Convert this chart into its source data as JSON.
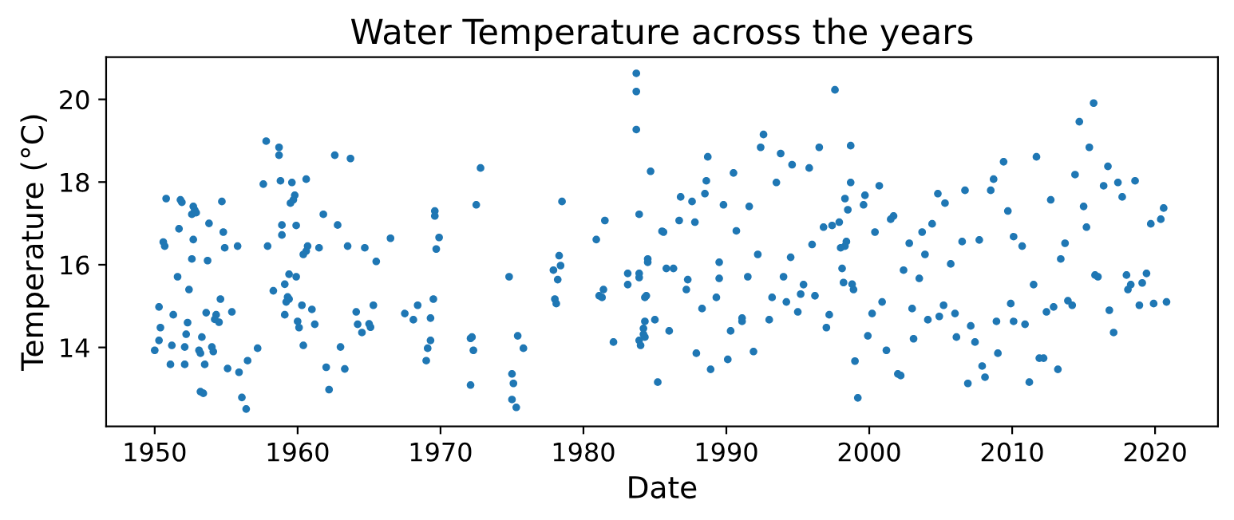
{
  "chart_data": {
    "type": "scatter",
    "title": "Water Temperature across the years",
    "xlabel": "Date",
    "ylabel": "Temperature (°C)",
    "color": "#1f77b4",
    "marker": "circle",
    "grid": false,
    "xlim": [
      1946.6,
      2024.4
    ],
    "ylim": [
      12.09,
      21.02
    ],
    "xticks": [
      1950,
      1960,
      1970,
      1980,
      1990,
      2000,
      2010,
      2020
    ],
    "yticks": [
      14,
      16,
      18,
      20
    ],
    "x": [
      1950.8,
      1951.8,
      1951.9,
      1952.7,
      1952.8,
      1952.6,
      1952.9,
      1954.7,
      1953.8,
      1951.7,
      1954.8,
      1950.6,
      1950.7,
      1952.7,
      1954.9,
      1955.8,
      1952.6,
      1953.7,
      1951.6,
      1952.4,
      1954.6,
      1950.3,
      1951.3,
      1953.6,
      1954.3,
      1954.2,
      1954.5,
      1955.4,
      1950.4,
      1952.3,
      1952.2,
      1953.3,
      1950.3,
      1951.2,
      1952.1,
      1953.1,
      1953.2,
      1954.0,
      1954.1,
      1950.0,
      1951.1,
      1952.1,
      1953.5,
      1955.1,
      1955.9,
      1956.5,
      1957.2,
      1953.2,
      1953.4,
      1956.1,
      1956.4,
      1957.8,
      1958.7,
      1958.7,
      1957.6,
      1958.8,
      1959.6,
      1960.6,
      1959.8,
      1959.7,
      1959.5,
      1958.9,
      1958.9,
      1959.9,
      1957.9,
      1960.7,
      1960.6,
      1960.4,
      1961.5,
      1961.8,
      1962.8,
      1962.6,
      1963.7,
      1963.5,
      1964.7,
      1965.5,
      1959.4,
      1959.9,
      1959.1,
      1958.3,
      1959.3,
      1959.4,
      1959.2,
      1959.1,
      1960.3,
      1961.0,
      1960.0,
      1960.1,
      1961.2,
      1960.4,
      1964.1,
      1965.3,
      1964.2,
      1965.0,
      1965.1,
      1964.5,
      1963.0,
      1962.0,
      1963.3,
      1962.2,
      1983.7,
      1983.7,
      1983.7,
      1984.7,
      1972.8,
      1972.5,
      1978.5,
      1983.9,
      1981.5,
      1980.9,
      1985.5,
      1966.5,
      1969.6,
      1969.6,
      1969.9,
      1969.7,
      1978.3,
      1978.4,
      1977.9,
      1978.2,
      1974.8,
      1983.1,
      1983.9,
      1983.9,
      1983.1,
      1984.5,
      1984.5,
      1984.4,
      1984.3,
      1981.4,
      1981.1,
      1981.3,
      1969.5,
      1978.0,
      1978.1,
      1967.5,
      1968.4,
      1968.1,
      1969.3,
      1969.3,
      1969.1,
      1969.0,
      1984.3,
      1985.0,
      1984.2,
      1984.2,
      1984.3,
      1983.9,
      1984.0,
      1982.1,
      1972.1,
      1972.2,
      1972.3,
      1975.4,
      1975.8,
      1972.1,
      1975.0,
      1975.1,
      1975.0,
      1975.3,
      1985.2,
      1997.6,
      1992.6,
      1992.4,
      1996.5,
      1998.7,
      1993.8,
      1988.7,
      1994.6,
      1995.8,
      1993.5,
      1988.6,
      1998.7,
      1990.5,
      2000.7,
      1988.5,
      1986.8,
      1987.6,
      1989.8,
      1991.6,
      1998.3,
      1999.7,
      1998.5,
      1999.6,
      1986.7,
      1987.8,
      1985.6,
      1990.7,
      1996.8,
      1997.4,
      1997.9,
      2001.7,
      2001.5,
      2004.8,
      2004.4,
      2003.7,
      2000.4,
      1996.0,
      1998.4,
      1998.3,
      1998.0,
      2002.8,
      1992.2,
      1994.5,
      2003.9,
      1989.5,
      1985.8,
      1986.3,
      1987.3,
      1987.2,
      1989.5,
      1991.5,
      1994.0,
      1995.4,
      1998.1,
      1998.2,
      1998.8,
      1998.9,
      2002.4,
      2003.5,
      1989.3,
      1993.2,
      1995.2,
      1996.2,
      1994.2,
      1988.3,
      1995.0,
      2000.9,
      2000.2,
      2003.0,
      1991.1,
      1991.1,
      1993.0,
      1997.2,
      1997.0,
      2004.1,
      2004.9,
      1990.3,
      1986.0,
      1999.9,
      1987.9,
      1991.9,
      2001.2,
      1988.9,
      1990.1,
      1999.0,
      2003.1,
      2002.0,
      2002.2,
      1999.2,
      2015.7,
      2014.7,
      2015.4,
      2009.4,
      2011.7,
      2016.7,
      2014.4,
      2008.7,
      2008.5,
      2006.7,
      2005.3,
      2017.4,
      2018.6,
      2016.4,
      2017.7,
      2012.7,
      2015.0,
      2009.7,
      2015.2,
      2020.6,
      2019.7,
      2020.4,
      2006.5,
      2007.7,
      2010.1,
      2010.7,
      2013.7,
      2013.4,
      2005.7,
      2011.5,
      2015.8,
      2016.0,
      2018.0,
      2019.4,
      2019.1,
      2018.3,
      2018.1,
      2005.2,
      2006.0,
      2009.9,
      2012.4,
      2012.9,
      2013.9,
      2014.2,
      2016.8,
      2018.9,
      2019.9,
      2020.8,
      2007.1,
      2008.9,
      2010.1,
      2010.9,
      2006.1,
      2007.4,
      2017.1,
      2009.0,
      2007.9,
      2008.1,
      2006.9,
      2011.2,
      2011.9,
      2012.2,
      2013.2
    ],
    "values": [
      17.6,
      17.57,
      17.51,
      17.41,
      17.32,
      17.22,
      17.26,
      17.53,
      17.0,
      16.87,
      16.79,
      16.55,
      16.45,
      16.61,
      16.41,
      16.45,
      16.14,
      16.1,
      15.71,
      15.4,
      15.17,
      14.98,
      14.79,
      14.84,
      14.79,
      14.68,
      14.61,
      14.86,
      14.48,
      14.6,
      14.32,
      14.25,
      14.17,
      14.05,
      14.01,
      13.93,
      13.86,
      14.01,
      13.9,
      13.93,
      13.59,
      13.59,
      13.59,
      13.49,
      13.4,
      13.68,
      13.98,
      12.93,
      12.89,
      12.79,
      12.51,
      18.99,
      18.84,
      18.65,
      17.95,
      18.03,
      17.99,
      18.07,
      17.68,
      17.57,
      17.49,
      16.96,
      16.72,
      16.95,
      16.45,
      16.45,
      16.33,
      16.25,
      16.41,
      17.22,
      16.96,
      18.65,
      18.57,
      16.45,
      16.41,
      16.08,
      15.77,
      15.71,
      15.53,
      15.37,
      15.22,
      15.17,
      15.1,
      14.79,
      15.02,
      14.92,
      14.63,
      14.48,
      14.56,
      14.05,
      14.86,
      15.02,
      14.56,
      14.57,
      14.49,
      14.36,
      14.01,
      13.52,
      13.48,
      12.98,
      20.63,
      20.19,
      19.27,
      18.26,
      18.34,
      17.45,
      17.53,
      17.22,
      17.07,
      16.61,
      16.81,
      16.64,
      17.3,
      17.18,
      16.66,
      16.38,
      16.22,
      15.98,
      15.87,
      15.64,
      15.71,
      15.79,
      15.79,
      15.69,
      15.52,
      16.14,
      16.06,
      15.25,
      15.21,
      15.4,
      15.25,
      15.21,
      15.17,
      15.17,
      15.06,
      14.82,
      15.02,
      14.67,
      14.71,
      14.17,
      13.98,
      13.68,
      14.63,
      14.67,
      14.46,
      14.32,
      14.25,
      14.17,
      14.05,
      14.13,
      14.22,
      14.25,
      13.93,
      14.28,
      13.98,
      13.09,
      13.36,
      13.13,
      12.74,
      12.55,
      13.16,
      20.23,
      19.15,
      18.84,
      18.84,
      18.88,
      18.69,
      18.61,
      18.42,
      18.34,
      17.99,
      18.03,
      17.99,
      18.22,
      17.91,
      17.72,
      17.64,
      17.53,
      17.45,
      17.41,
      17.6,
      17.68,
      17.33,
      17.45,
      17.07,
      17.03,
      16.79,
      16.82,
      16.91,
      16.95,
      17.03,
      17.18,
      17.1,
      17.72,
      16.99,
      16.79,
      16.79,
      16.49,
      16.56,
      16.45,
      16.41,
      16.52,
      16.25,
      16.18,
      16.25,
      16.06,
      15.91,
      15.91,
      15.64,
      15.4,
      15.67,
      15.71,
      15.71,
      15.52,
      15.91,
      15.57,
      15.53,
      15.4,
      15.87,
      15.67,
      15.21,
      15.21,
      15.29,
      15.25,
      15.1,
      14.94,
      14.86,
      15.1,
      14.82,
      14.94,
      14.71,
      14.63,
      14.67,
      14.79,
      14.48,
      14.67,
      14.75,
      14.4,
      14.4,
      14.28,
      13.86,
      13.9,
      13.93,
      13.47,
      13.71,
      13.67,
      14.21,
      13.36,
      13.32,
      12.78,
      19.91,
      19.46,
      18.84,
      18.49,
      18.61,
      18.38,
      18.18,
      18.07,
      17.8,
      17.8,
      17.49,
      17.99,
      18.03,
      17.91,
      17.64,
      17.57,
      17.41,
      17.3,
      16.91,
      17.37,
      16.99,
      17.1,
      16.56,
      16.6,
      16.68,
      16.45,
      16.52,
      16.14,
      16.02,
      15.52,
      15.75,
      15.71,
      15.75,
      15.79,
      15.56,
      15.52,
      15.4,
      15.02,
      14.82,
      15.06,
      14.86,
      14.98,
      15.13,
      15.02,
      14.9,
      15.02,
      15.06,
      15.1,
      14.52,
      14.63,
      14.63,
      14.56,
      14.25,
      14.13,
      14.36,
      13.86,
      13.55,
      13.28,
      13.13,
      13.16,
      13.74,
      13.74,
      13.47
    ]
  }
}
